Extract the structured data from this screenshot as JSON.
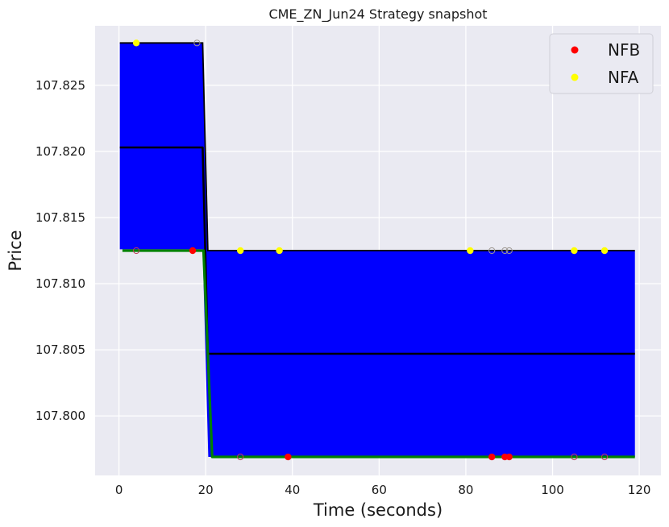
{
  "chart_data": {
    "type": "line",
    "title": "CME_ZN_Jun24 Strategy snapshot",
    "xlabel": "Time (seconds)",
    "ylabel": "Price",
    "xlim": [
      -5.5,
      125
    ],
    "ylim": [
      107.7955,
      107.8295
    ],
    "xticks": [
      0,
      20,
      40,
      60,
      80,
      100,
      120
    ],
    "yticks": [
      107.8,
      107.805,
      107.81,
      107.815,
      107.82,
      107.825
    ],
    "ytick_labels": [
      "107.800",
      "107.805",
      "107.810",
      "107.815",
      "107.820",
      "107.825"
    ],
    "grid": true,
    "legend_position": "top-right",
    "colors": {
      "band": "#0000ff",
      "mid_line": "#000000",
      "bid_line": "#008000",
      "nfb": "#ff0000",
      "nfa": "#ffff00",
      "background": "#eaeaf2",
      "grid": "#ffffff"
    },
    "band": {
      "upper": [
        [
          0.2,
          107.8282
        ],
        [
          19.3,
          107.8282
        ],
        [
          20.5,
          107.8125
        ],
        [
          119,
          107.8125
        ]
      ],
      "lower": [
        [
          0.2,
          107.8126
        ],
        [
          19.3,
          107.8126
        ],
        [
          20.6,
          107.7969
        ],
        [
          119,
          107.7969
        ]
      ]
    },
    "series": [
      {
        "role": "mid",
        "points": [
          [
            0.2,
            107.8203
          ],
          [
            19.3,
            107.8203
          ],
          [
            20.5,
            107.8047
          ],
          [
            119,
            107.8047
          ]
        ]
      },
      {
        "role": "bid",
        "points": [
          [
            0.8,
            107.8125
          ],
          [
            2.0,
            107.8125
          ],
          [
            19.5,
            107.8125
          ],
          [
            21.5,
            107.7969
          ],
          [
            23.5,
            107.7969
          ],
          [
            30.5,
            107.7969
          ],
          [
            31.5,
            107.7969
          ],
          [
            37,
            107.7969
          ],
          [
            40,
            107.7969
          ],
          [
            81,
            107.7969
          ],
          [
            102,
            107.7969
          ],
          [
            112,
            107.7969
          ],
          [
            119,
            107.7969
          ]
        ]
      }
    ],
    "scatter": [
      {
        "name": "NFB",
        "points": [
          [
            17,
            107.8125
          ],
          [
            39,
            107.7969
          ],
          [
            86,
            107.7969
          ],
          [
            89,
            107.7969
          ],
          [
            90,
            107.7969
          ]
        ]
      },
      {
        "name": "NFA",
        "points": [
          [
            4,
            107.8282
          ],
          [
            28,
            107.8125
          ],
          [
            37,
            107.8125
          ],
          [
            81,
            107.8125
          ],
          [
            105,
            107.8125
          ],
          [
            112,
            107.8125
          ]
        ]
      }
    ],
    "hollow_markers": [
      {
        "role": "ask_side",
        "points": [
          [
            18,
            107.8282
          ],
          [
            86,
            107.8125
          ],
          [
            89,
            107.8125
          ],
          [
            90,
            107.8125
          ]
        ]
      },
      {
        "role": "bid_side",
        "points": [
          [
            4,
            107.8125
          ],
          [
            28,
            107.7969
          ],
          [
            105,
            107.7969
          ],
          [
            112,
            107.7969
          ]
        ]
      }
    ]
  }
}
